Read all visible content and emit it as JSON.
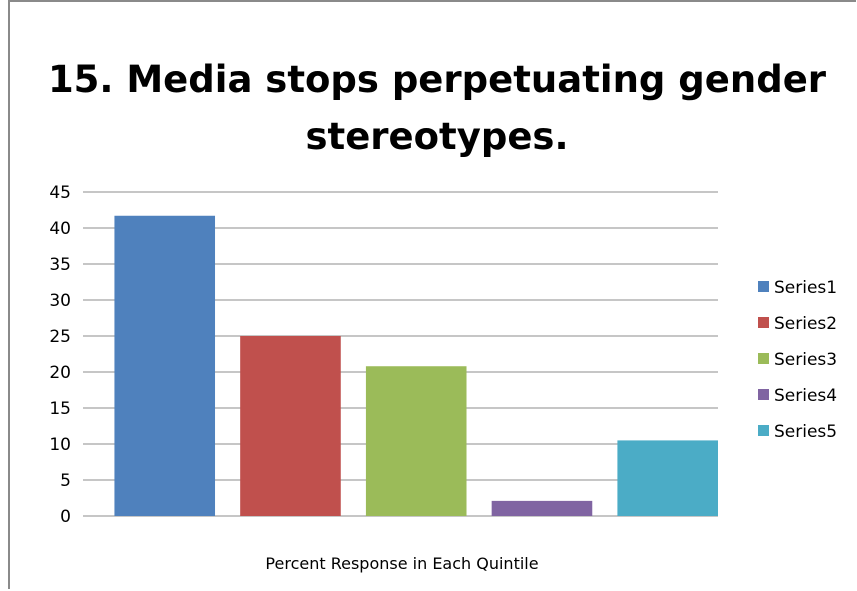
{
  "chart_data": {
    "type": "bar",
    "title_lines": [
      "15.  Media stops perpetuating gender",
      "stereotypes."
    ],
    "xlabel": "Percent Response in Each Quintile",
    "ylabel": "",
    "ylim": [
      0,
      45
    ],
    "yticks": [
      0,
      5,
      10,
      15,
      20,
      25,
      30,
      35,
      40,
      45
    ],
    "grid": true,
    "legend_position": "right",
    "series": [
      {
        "name": "Series1",
        "value": 41.7,
        "color": "#4f81bd"
      },
      {
        "name": "Series2",
        "value": 25.0,
        "color": "#c0504d"
      },
      {
        "name": "Series3",
        "value": 20.8,
        "color": "#9bbb59"
      },
      {
        "name": "Series4",
        "value": 2.1,
        "color": "#8064a2"
      },
      {
        "name": "Series5",
        "value": 10.5,
        "color": "#4bacc6"
      }
    ]
  }
}
